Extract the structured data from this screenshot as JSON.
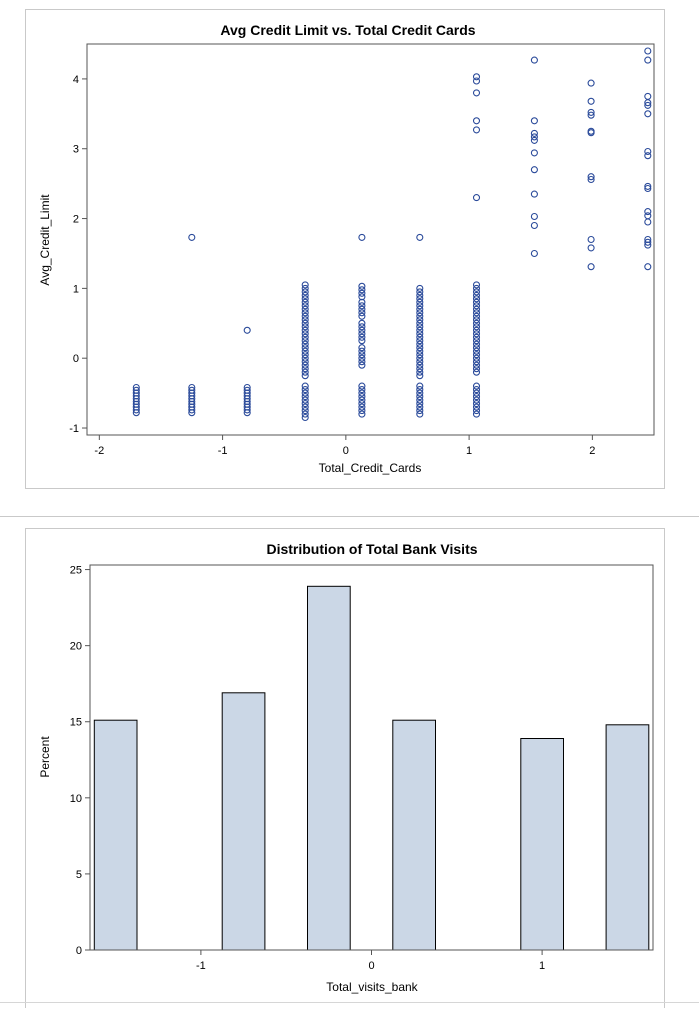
{
  "chart_data": [
    {
      "type": "scatter",
      "title": "Avg Credit Limit vs. Total Credit Cards",
      "xlabel": "Total_Credit_Cards",
      "ylabel": "Avg_Credit_Limit",
      "xlim": [
        -2.1,
        2.5
      ],
      "ylim": [
        -1.1,
        4.5
      ],
      "xticks": [
        "-2",
        "-1",
        "0",
        "1",
        "2"
      ],
      "yticks": [
        "-1",
        "0",
        "1",
        "2",
        "3",
        "4"
      ],
      "grid": false,
      "marker": "open-circle",
      "color": "#2a4a9a",
      "series": [
        {
          "x": -1.7,
          "y": [
            -0.78,
            -0.74,
            -0.7,
            -0.66,
            -0.62,
            -0.58,
            -0.54,
            -0.5,
            -0.46,
            -0.42
          ]
        },
        {
          "x": -1.25,
          "y": [
            1.73,
            -0.78,
            -0.74,
            -0.7,
            -0.66,
            -0.62,
            -0.58,
            -0.54,
            -0.5,
            -0.46,
            -0.42
          ]
        },
        {
          "x": -0.8,
          "y": [
            0.4,
            -0.78,
            -0.74,
            -0.7,
            -0.66,
            -0.62,
            -0.58,
            -0.54,
            -0.5,
            -0.46,
            -0.42
          ]
        },
        {
          "x": -0.33,
          "y": [
            1.05,
            1.0,
            0.95,
            0.9,
            0.85,
            0.8,
            0.75,
            0.7,
            0.65,
            0.6,
            0.55,
            0.5,
            0.45,
            0.4,
            0.35,
            0.3,
            0.25,
            0.2,
            0.15,
            0.1,
            0.05,
            0.0,
            -0.05,
            -0.1,
            -0.15,
            -0.2,
            -0.25,
            -0.4,
            -0.45,
            -0.5,
            -0.55,
            -0.6,
            -0.65,
            -0.7,
            -0.75,
            -0.8,
            -0.85
          ]
        },
        {
          "x": 0.13,
          "y": [
            1.73,
            1.03,
            0.98,
            0.93,
            0.88,
            0.8,
            0.75,
            0.7,
            0.65,
            0.6,
            0.5,
            0.45,
            0.4,
            0.35,
            0.3,
            0.25,
            0.15,
            0.1,
            0.05,
            0.0,
            -0.05,
            -0.1,
            -0.4,
            -0.45,
            -0.5,
            -0.55,
            -0.6,
            -0.65,
            -0.7,
            -0.75,
            -0.8
          ]
        },
        {
          "x": 0.6,
          "y": [
            1.73,
            1.0,
            0.95,
            0.9,
            0.85,
            0.8,
            0.75,
            0.7,
            0.65,
            0.6,
            0.55,
            0.5,
            0.45,
            0.4,
            0.35,
            0.3,
            0.25,
            0.2,
            0.15,
            0.1,
            0.05,
            0.0,
            -0.05,
            -0.1,
            -0.15,
            -0.2,
            -0.25,
            -0.4,
            -0.45,
            -0.5,
            -0.55,
            -0.6,
            -0.65,
            -0.7,
            -0.75,
            -0.8
          ]
        },
        {
          "x": 1.06,
          "y": [
            4.03,
            3.97,
            3.8,
            3.4,
            3.27,
            2.3,
            1.05,
            1.0,
            0.95,
            0.9,
            0.85,
            0.8,
            0.75,
            0.7,
            0.65,
            0.6,
            0.55,
            0.5,
            0.45,
            0.4,
            0.35,
            0.3,
            0.25,
            0.2,
            0.15,
            0.1,
            0.05,
            0.0,
            -0.05,
            -0.1,
            -0.15,
            -0.2,
            -0.4,
            -0.45,
            -0.5,
            -0.55,
            -0.6,
            -0.65,
            -0.7,
            -0.75,
            -0.8
          ]
        },
        {
          "x": 1.53,
          "y": [
            4.27,
            3.4,
            3.22,
            3.17,
            3.12,
            2.94,
            2.7,
            2.35,
            2.03,
            1.9,
            1.5
          ]
        },
        {
          "x": 1.99,
          "y": [
            3.94,
            3.68,
            3.52,
            3.48,
            3.25,
            3.23,
            2.6,
            2.56,
            1.7,
            1.58,
            1.31
          ]
        },
        {
          "x": 2.45,
          "y": [
            4.4,
            4.27,
            3.75,
            3.66,
            3.62,
            3.5,
            2.96,
            2.9,
            2.46,
            2.43,
            2.1,
            2.04,
            1.95,
            1.7,
            1.66,
            1.62,
            1.31
          ]
        }
      ]
    },
    {
      "type": "bar",
      "title": "Distribution of Total Bank Visits",
      "xlabel": "Total_visits_bank",
      "ylabel": "Percent",
      "xlim": [
        -1.65,
        1.65
      ],
      "ylim": [
        0,
        25.3
      ],
      "xticks": [
        "-1",
        "0",
        "1"
      ],
      "yticks": [
        "0",
        "5",
        "10",
        "15",
        "20",
        "25"
      ],
      "grid": false,
      "bar_fill": "#cbd7e6",
      "bar_width": 0.25,
      "x": [
        -1.5,
        -0.75,
        -0.25,
        0.25,
        1.0,
        1.5
      ],
      "values": [
        15.1,
        16.9,
        23.9,
        15.1,
        13.9,
        14.8
      ]
    }
  ]
}
